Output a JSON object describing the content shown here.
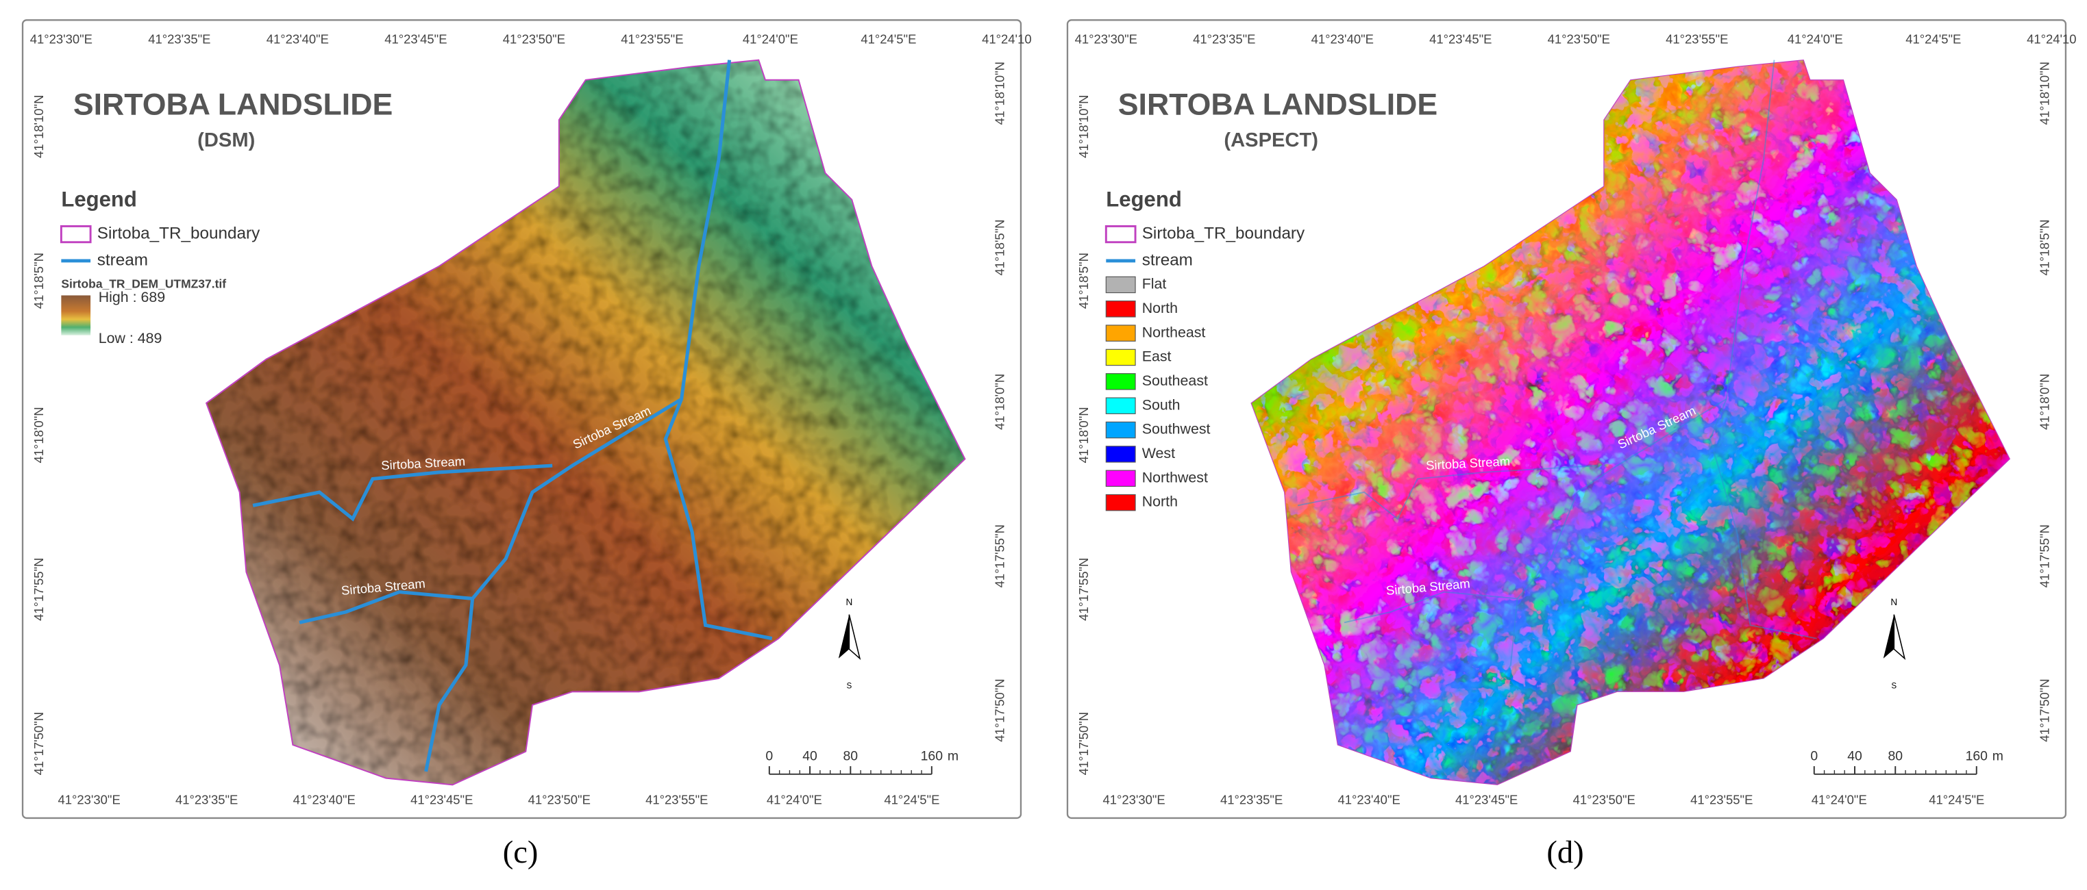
{
  "panels": [
    {
      "title": "SIRTOBA LANDSLIDE",
      "subtitle": "(DSM)",
      "legend_title": "Legend",
      "legend": [
        {
          "label": "Sirtoba_TR_boundary",
          "kind": "boundary",
          "color": "#c040c0"
        },
        {
          "label": "stream",
          "kind": "stream",
          "color": "#2a8fd8"
        }
      ],
      "raster_name": "Sirtoba_TR_DEM_UTMZ37.tif",
      "high": "High : 689",
      "low": "Low : 489",
      "stream_labels": [
        "Sirtoba Stream",
        "Sirtoba Stream",
        "Sirtoba Stream"
      ],
      "top_coords": [
        "41°23'30\"E",
        "41°23'35\"E",
        "41°23'40\"E",
        "41°23'45\"E",
        "41°23'50\"E",
        "41°23'55\"E",
        "41°24'0\"E",
        "41°24'5\"E",
        "41°24'10"
      ],
      "bottom_coords": [
        "41°23'30\"E",
        "41°23'35\"E",
        "41°23'40\"E",
        "41°23'45\"E",
        "41°23'50\"E",
        "41°23'55\"E",
        "41°24'0\"E",
        "41°24'5\"E"
      ],
      "left_coords": [
        "41°18'10\"N",
        "41°18'5\"N",
        "41°18'0\"N",
        "41°17'55\"N",
        "41°17'50\"N"
      ],
      "right_coords": [
        "41°18'10\"N",
        "41°18'5\"N",
        "41°18'0\"N",
        "41°17'55\"N",
        "41°17'50\"N"
      ],
      "north": "N",
      "south": "S",
      "scale": [
        0,
        40,
        80,
        160
      ],
      "scale_unit": "m",
      "caption": "(c)"
    },
    {
      "title": "SIRTOBA LANDSLIDE",
      "subtitle": "(ASPECT)",
      "legend_title": "Legend",
      "legend": [
        {
          "label": "Sirtoba_TR_boundary",
          "kind": "boundary",
          "color": "#c040c0"
        },
        {
          "label": "stream",
          "kind": "stream",
          "color": "#2a8fd8"
        },
        {
          "label": "Flat",
          "kind": "swatch",
          "color": "#b2b2b2"
        },
        {
          "label": "North",
          "kind": "swatch",
          "color": "#ff0000"
        },
        {
          "label": "Northeast",
          "kind": "swatch",
          "color": "#ffa500"
        },
        {
          "label": "East",
          "kind": "swatch",
          "color": "#ffff00"
        },
        {
          "label": "Southeast",
          "kind": "swatch",
          "color": "#00ff00"
        },
        {
          "label": "South",
          "kind": "swatch",
          "color": "#00ffff"
        },
        {
          "label": "Southwest",
          "kind": "swatch",
          "color": "#00a5ff"
        },
        {
          "label": "West",
          "kind": "swatch",
          "color": "#0000ff"
        },
        {
          "label": "Northwest",
          "kind": "swatch",
          "color": "#ff00ff"
        },
        {
          "label": "North",
          "kind": "swatch",
          "color": "#ff0000"
        }
      ],
      "stream_labels": [
        "Sirtoba Stream",
        "Sirtoba Stream",
        "Sirtoba Stream"
      ],
      "top_coords": [
        "41°23'30\"E",
        "41°23'35\"E",
        "41°23'40\"E",
        "41°23'45\"E",
        "41°23'50\"E",
        "41°23'55\"E",
        "41°24'0\"E",
        "41°24'5\"E",
        "41°24'10"
      ],
      "bottom_coords": [
        "41°23'30\"E",
        "41°23'35\"E",
        "41°23'40\"E",
        "41°23'45\"E",
        "41°23'50\"E",
        "41°23'55\"E",
        "41°24'0\"E",
        "41°24'5\"E"
      ],
      "left_coords": [
        "41°18'10\"N",
        "41°18'5\"N",
        "41°18'0\"N",
        "41°17'55\"N",
        "41°17'50\"N"
      ],
      "right_coords": [
        "41°18'10\"N",
        "41°18'5\"N",
        "41°18'0\"N",
        "41°17'55\"N",
        "41°17'50\"N"
      ],
      "north": "N",
      "south": "S",
      "scale": [
        0,
        40,
        80,
        160
      ],
      "scale_unit": "m",
      "caption": "(d)"
    }
  ]
}
